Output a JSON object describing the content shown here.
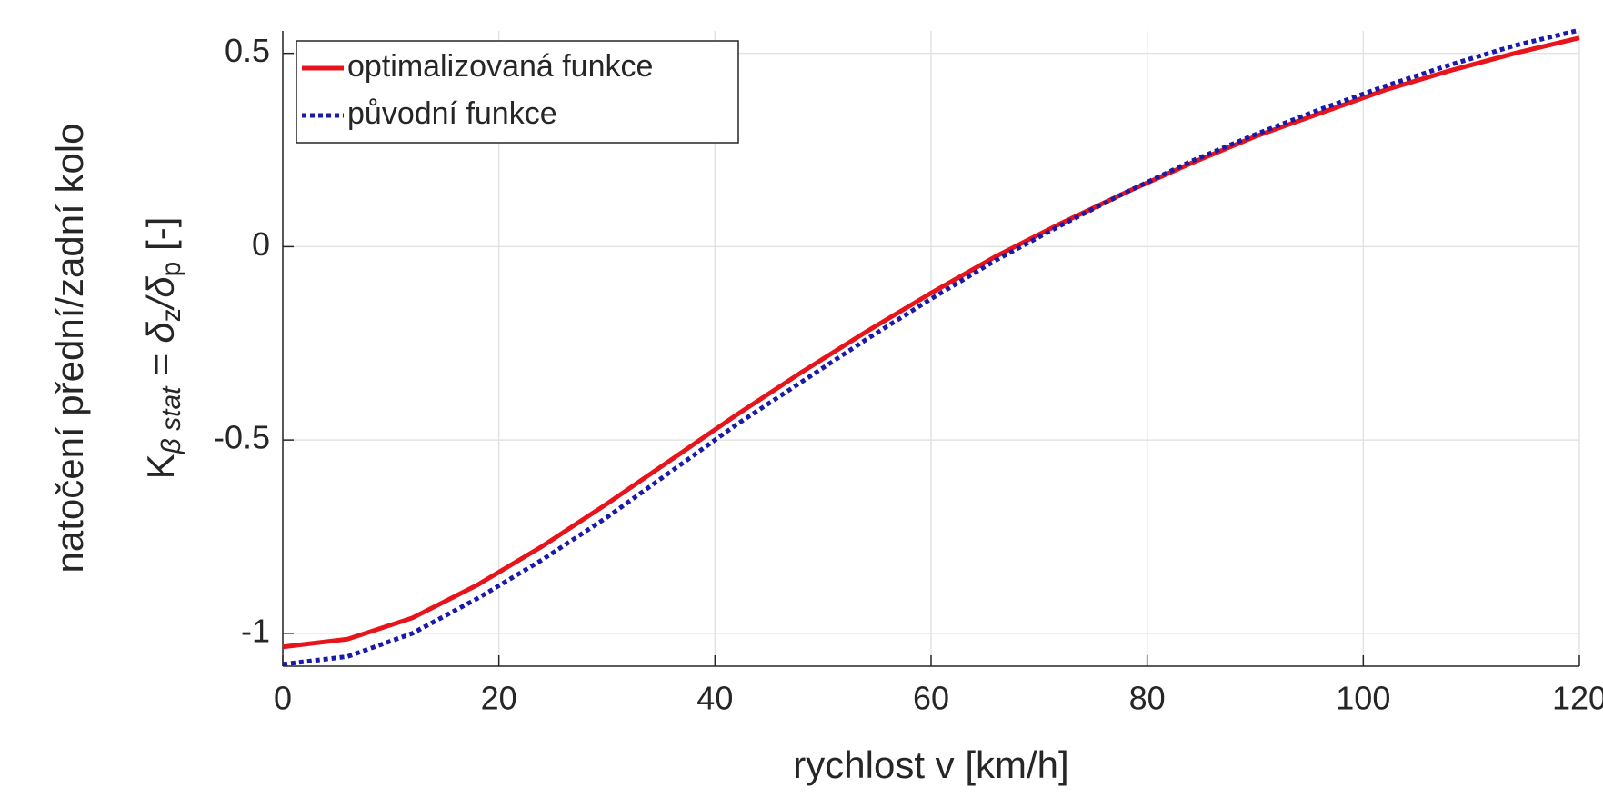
{
  "chart_data": {
    "type": "line",
    "x": [
      0,
      6,
      12,
      18,
      24,
      30,
      36,
      42,
      48,
      54,
      60,
      66,
      72,
      78,
      84,
      90,
      96,
      102,
      108,
      114,
      120
    ],
    "series": [
      {
        "name": "optimalizovaná funkce",
        "color": "#e8141c",
        "dash": "solid",
        "values": [
          -1.035,
          -1.015,
          -0.96,
          -0.875,
          -0.775,
          -0.665,
          -0.55,
          -0.435,
          -0.325,
          -0.22,
          -0.12,
          -0.025,
          0.06,
          0.14,
          0.215,
          0.285,
          0.345,
          0.405,
          0.455,
          0.5,
          0.54
        ]
      },
      {
        "name": "původní funkce",
        "color": "#1a1aa8",
        "dash": "dotted",
        "values": [
          -1.08,
          -1.06,
          -1.0,
          -0.91,
          -0.81,
          -0.7,
          -0.58,
          -0.46,
          -0.35,
          -0.24,
          -0.135,
          -0.035,
          0.055,
          0.14,
          0.22,
          0.29,
          0.355,
          0.415,
          0.47,
          0.52,
          0.56
        ]
      }
    ],
    "xlabel": "rychlost v [km/h]",
    "ylabel": "natočení přední/zadní kolo",
    "ylabel2": [
      {
        "text": "K"
      },
      {
        "text": "β stat",
        "sub": true
      },
      {
        "text": " = δ"
      },
      {
        "text": "z",
        "sub": true
      },
      {
        "text": "/δ"
      },
      {
        "text": "p",
        "sub": true
      },
      {
        "text": " [-]"
      }
    ],
    "xlim": [
      0,
      120
    ],
    "ylim": [
      -1.085,
      0.558
    ],
    "xticks": [
      0,
      20,
      40,
      60,
      80,
      100,
      120
    ],
    "yticks": [
      -1,
      -0.5,
      0,
      0.5
    ],
    "grid": true,
    "legend": "upper left"
  }
}
